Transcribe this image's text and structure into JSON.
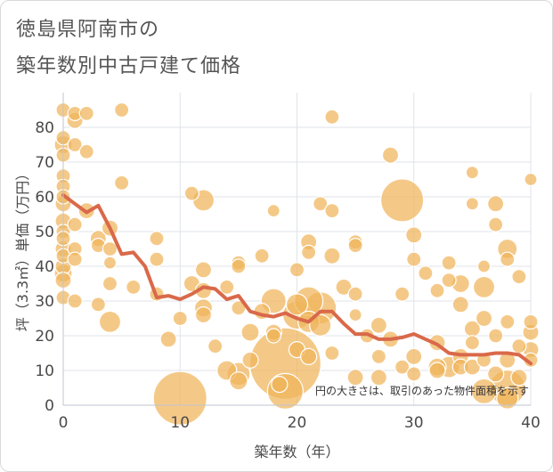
{
  "title_line1": "徳島県阿南市の",
  "title_line2": "築年数別中古戸建て価格",
  "chart_data": {
    "type": "scatter",
    "title": "徳島県阿南市の 築年数別中古戸建て価格",
    "xlabel": "築年数（年）",
    "ylabel": "坪（3.3㎡）単価（万円）",
    "xlim": [
      0,
      40
    ],
    "ylim": [
      0,
      90
    ],
    "xticks": [
      0,
      10,
      20,
      30,
      40
    ],
    "yticks": [
      0,
      10,
      20,
      30,
      40,
      50,
      60,
      70,
      80
    ],
    "grid": true,
    "note": "円の大きさは、取引のあった物件面積を示す",
    "colors": {
      "bubble": "#f0b45a",
      "bubble_edge": "#ffffff",
      "line": "#d9694a",
      "grid": "#dfe3ea"
    },
    "points": [
      {
        "x": 0,
        "y": 85,
        "s": 8
      },
      {
        "x": 0,
        "y": 77,
        "s": 8
      },
      {
        "x": 0,
        "y": 75,
        "s": 10
      },
      {
        "x": 0,
        "y": 72,
        "s": 8
      },
      {
        "x": 0,
        "y": 66,
        "s": 8
      },
      {
        "x": 0,
        "y": 63,
        "s": 8
      },
      {
        "x": 0,
        "y": 60,
        "s": 8
      },
      {
        "x": 0,
        "y": 58,
        "s": 9
      },
      {
        "x": 0,
        "y": 53,
        "s": 9
      },
      {
        "x": 0,
        "y": 50,
        "s": 8
      },
      {
        "x": 0,
        "y": 48,
        "s": 8
      },
      {
        "x": 0,
        "y": 45,
        "s": 9
      },
      {
        "x": 0,
        "y": 43,
        "s": 8
      },
      {
        "x": 0,
        "y": 40,
        "s": 9
      },
      {
        "x": 0,
        "y": 38,
        "s": 10
      },
      {
        "x": 0,
        "y": 36,
        "s": 9
      },
      {
        "x": 0,
        "y": 31,
        "s": 8
      },
      {
        "x": 1,
        "y": 84,
        "s": 8
      },
      {
        "x": 1,
        "y": 82,
        "s": 9
      },
      {
        "x": 1,
        "y": 75,
        "s": 8
      },
      {
        "x": 1,
        "y": 52,
        "s": 8
      },
      {
        "x": 1,
        "y": 45,
        "s": 8
      },
      {
        "x": 1,
        "y": 42,
        "s": 8
      },
      {
        "x": 1,
        "y": 30,
        "s": 8
      },
      {
        "x": 2,
        "y": 84,
        "s": 8
      },
      {
        "x": 2,
        "y": 73,
        "s": 8
      },
      {
        "x": 2,
        "y": 56,
        "s": 9
      },
      {
        "x": 3,
        "y": 48,
        "s": 9
      },
      {
        "x": 3,
        "y": 46,
        "s": 8
      },
      {
        "x": 3,
        "y": 29,
        "s": 8
      },
      {
        "x": 4,
        "y": 51,
        "s": 9
      },
      {
        "x": 4,
        "y": 45,
        "s": 8
      },
      {
        "x": 4,
        "y": 41,
        "s": 7
      },
      {
        "x": 4,
        "y": 35,
        "s": 8
      },
      {
        "x": 4,
        "y": 24,
        "s": 12
      },
      {
        "x": 5,
        "y": 85,
        "s": 8
      },
      {
        "x": 5,
        "y": 64,
        "s": 8
      },
      {
        "x": 6,
        "y": 34,
        "s": 8
      },
      {
        "x": 8,
        "y": 48,
        "s": 8
      },
      {
        "x": 8,
        "y": 42,
        "s": 8
      },
      {
        "x": 8,
        "y": 32,
        "s": 8
      },
      {
        "x": 9,
        "y": 19,
        "s": 9
      },
      {
        "x": 10,
        "y": 2,
        "s": 30
      },
      {
        "x": 10,
        "y": 25,
        "s": 8
      },
      {
        "x": 11,
        "y": 61,
        "s": 8
      },
      {
        "x": 11,
        "y": 35,
        "s": 9
      },
      {
        "x": 12,
        "y": 59,
        "s": 12
      },
      {
        "x": 12,
        "y": 39,
        "s": 9
      },
      {
        "x": 12,
        "y": 33,
        "s": 9
      },
      {
        "x": 12,
        "y": 28,
        "s": 10
      },
      {
        "x": 12,
        "y": 26,
        "s": 9
      },
      {
        "x": 13,
        "y": 17,
        "s": 8
      },
      {
        "x": 14,
        "y": 34,
        "s": 8
      },
      {
        "x": 14,
        "y": 10,
        "s": 11
      },
      {
        "x": 15,
        "y": 41,
        "s": 8
      },
      {
        "x": 15,
        "y": 40,
        "s": 8
      },
      {
        "x": 15,
        "y": 28,
        "s": 8
      },
      {
        "x": 15,
        "y": 9,
        "s": 13
      },
      {
        "x": 15,
        "y": 7,
        "s": 10
      },
      {
        "x": 16,
        "y": 21,
        "s": 10
      },
      {
        "x": 16,
        "y": 13,
        "s": 9
      },
      {
        "x": 17,
        "y": 43,
        "s": 8
      },
      {
        "x": 17,
        "y": 27,
        "s": 9
      },
      {
        "x": 18,
        "y": 56,
        "s": 7
      },
      {
        "x": 18,
        "y": 30,
        "s": 14
      },
      {
        "x": 18,
        "y": 21,
        "s": 9
      },
      {
        "x": 18,
        "y": 20,
        "s": 8
      },
      {
        "x": 19,
        "y": 12,
        "s": 40
      },
      {
        "x": 18.5,
        "y": 6,
        "s": 9
      },
      {
        "x": 19,
        "y": 4,
        "s": 20
      },
      {
        "x": 20,
        "y": 39,
        "s": 8
      },
      {
        "x": 20,
        "y": 29,
        "s": 12
      },
      {
        "x": 20,
        "y": 26,
        "s": 16
      },
      {
        "x": 20,
        "y": 16,
        "s": 9
      },
      {
        "x": 21,
        "y": 47,
        "s": 9
      },
      {
        "x": 21,
        "y": 44,
        "s": 8
      },
      {
        "x": 21,
        "y": 30,
        "s": 16
      },
      {
        "x": 21,
        "y": 24,
        "s": 12
      },
      {
        "x": 21,
        "y": 14,
        "s": 9
      },
      {
        "x": 22,
        "y": 58,
        "s": 8
      },
      {
        "x": 22,
        "y": 28,
        "s": 18
      },
      {
        "x": 22,
        "y": 23,
        "s": 12
      },
      {
        "x": 23,
        "y": 83,
        "s": 8
      },
      {
        "x": 23,
        "y": 56,
        "s": 8
      },
      {
        "x": 23,
        "y": 43,
        "s": 9
      },
      {
        "x": 23,
        "y": 15,
        "s": 8
      },
      {
        "x": 24,
        "y": 34,
        "s": 9
      },
      {
        "x": 25,
        "y": 47,
        "s": 8
      },
      {
        "x": 25,
        "y": 46,
        "s": 8
      },
      {
        "x": 25,
        "y": 32,
        "s": 8
      },
      {
        "x": 25,
        "y": 26,
        "s": 7
      },
      {
        "x": 25,
        "y": 8,
        "s": 9
      },
      {
        "x": 26,
        "y": 20,
        "s": 8
      },
      {
        "x": 27,
        "y": 23,
        "s": 9
      },
      {
        "x": 27,
        "y": 14,
        "s": 8
      },
      {
        "x": 27,
        "y": 8,
        "s": 9
      },
      {
        "x": 28,
        "y": 72,
        "s": 9
      },
      {
        "x": 28,
        "y": 19,
        "s": 9
      },
      {
        "x": 29,
        "y": 59,
        "s": 24
      },
      {
        "x": 29,
        "y": 32,
        "s": 8
      },
      {
        "x": 29,
        "y": 11,
        "s": 8
      },
      {
        "x": 30,
        "y": 49,
        "s": 9
      },
      {
        "x": 30,
        "y": 42,
        "s": 8
      },
      {
        "x": 30,
        "y": 14,
        "s": 9
      },
      {
        "x": 30,
        "y": 9,
        "s": 8
      },
      {
        "x": 31,
        "y": 38,
        "s": 8
      },
      {
        "x": 32,
        "y": 33,
        "s": 8
      },
      {
        "x": 32,
        "y": 18,
        "s": 9
      },
      {
        "x": 32,
        "y": 11,
        "s": 10
      },
      {
        "x": 32,
        "y": 10,
        "s": 9
      },
      {
        "x": 33,
        "y": 41,
        "s": 8
      },
      {
        "x": 33,
        "y": 36,
        "s": 8
      },
      {
        "x": 33,
        "y": 11,
        "s": 12
      },
      {
        "x": 34,
        "y": 35,
        "s": 10
      },
      {
        "x": 34,
        "y": 29,
        "s": 9
      },
      {
        "x": 34,
        "y": 14,
        "s": 9
      },
      {
        "x": 34,
        "y": 11,
        "s": 9
      },
      {
        "x": 35,
        "y": 67,
        "s": 7
      },
      {
        "x": 35,
        "y": 58,
        "s": 7
      },
      {
        "x": 35,
        "y": 22,
        "s": 9
      },
      {
        "x": 35,
        "y": 18,
        "s": 8
      },
      {
        "x": 35,
        "y": 11,
        "s": 9
      },
      {
        "x": 36,
        "y": 40,
        "s": 7
      },
      {
        "x": 36,
        "y": 34,
        "s": 12
      },
      {
        "x": 36,
        "y": 25,
        "s": 9
      },
      {
        "x": 36,
        "y": 13,
        "s": 8
      },
      {
        "x": 36,
        "y": 4,
        "s": 14
      },
      {
        "x": 37,
        "y": 58,
        "s": 9
      },
      {
        "x": 37,
        "y": 52,
        "s": 8
      },
      {
        "x": 37,
        "y": 20,
        "s": 8
      },
      {
        "x": 37,
        "y": 9,
        "s": 9
      },
      {
        "x": 38,
        "y": 45,
        "s": 11
      },
      {
        "x": 38,
        "y": 42,
        "s": 8
      },
      {
        "x": 38,
        "y": 24,
        "s": 8
      },
      {
        "x": 38,
        "y": 13,
        "s": 9
      },
      {
        "x": 38,
        "y": 5,
        "s": 20
      },
      {
        "x": 38,
        "y": 2,
        "s": 12
      },
      {
        "x": 39,
        "y": 37,
        "s": 8
      },
      {
        "x": 39,
        "y": 17,
        "s": 8
      },
      {
        "x": 39,
        "y": 8,
        "s": 9
      },
      {
        "x": 40,
        "y": 65,
        "s": 7
      },
      {
        "x": 40,
        "y": 24,
        "s": 8
      },
      {
        "x": 40,
        "y": 21,
        "s": 9
      },
      {
        "x": 40,
        "y": 16,
        "s": 9
      },
      {
        "x": 40,
        "y": 13,
        "s": 8
      }
    ],
    "trend": {
      "x": [
        0,
        1,
        2,
        3,
        4,
        5,
        6,
        7,
        8,
        9,
        10,
        11,
        12,
        13,
        14,
        15,
        16,
        17,
        18,
        19,
        20,
        21,
        22,
        23,
        24,
        25,
        26,
        27,
        28,
        29,
        30,
        31,
        32,
        33,
        34,
        35,
        36,
        37,
        38,
        39,
        40
      ],
      "y": [
        60.5,
        58,
        55.5,
        57.5,
        51,
        43.5,
        44,
        40,
        31,
        31.5,
        30.5,
        32,
        34,
        33.5,
        30.5,
        31.5,
        27,
        26,
        25.5,
        26.5,
        25,
        24,
        27,
        27,
        23.5,
        20.5,
        20.5,
        19,
        19,
        19.5,
        20.5,
        19,
        17.5,
        15,
        14.5,
        14.5,
        14.5,
        15,
        15,
        14.5,
        12
      ]
    }
  }
}
